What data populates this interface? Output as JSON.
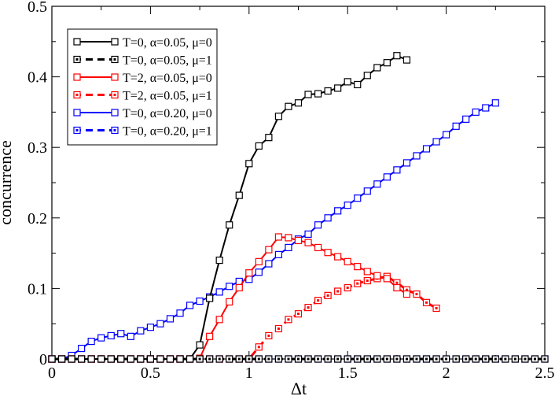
{
  "chart_data": {
    "type": "line",
    "title": "",
    "xlabel": "Δt",
    "ylabel": "concurrence",
    "xlim": [
      0,
      2.5
    ],
    "ylim": [
      0,
      0.5
    ],
    "xticks": [
      0,
      0.5,
      1,
      1.5,
      2,
      2.5
    ],
    "xtick_labels": [
      "0",
      "0.5",
      "1",
      "1.5",
      "2",
      "2.5"
    ],
    "yticks": [
      0,
      0.1,
      0.2,
      0.3,
      0.4,
      0.5
    ],
    "ytick_labels": [
      "0",
      "0.1",
      "0.2",
      "0.3",
      "0.4",
      "0.5"
    ],
    "grid": false,
    "legend_position": "top-left",
    "x": [
      0,
      0.05,
      0.1,
      0.15,
      0.2,
      0.25,
      0.3,
      0.35,
      0.4,
      0.45,
      0.5,
      0.55,
      0.6,
      0.65,
      0.7,
      0.75,
      0.8,
      0.85,
      0.9,
      0.95,
      1,
      1.05,
      1.1,
      1.15,
      1.2,
      1.25,
      1.3,
      1.35,
      1.4,
      1.45,
      1.5,
      1.55,
      1.6,
      1.65,
      1.7,
      1.75,
      1.8,
      1.85,
      1.9,
      1.95,
      2,
      2.05,
      2.1,
      2.15,
      2.2,
      2.25,
      2.3,
      2.35,
      2.4,
      2.45,
      2.5
    ],
    "series": [
      {
        "name": "T=0, α=0.05, μ=0",
        "label": "T=0, α=0.05, μ=0",
        "color": "#000000",
        "dashed": false,
        "values": [
          0,
          0,
          0,
          0,
          0,
          0,
          0,
          0,
          0,
          0,
          0,
          0,
          0,
          0,
          0,
          0.02,
          0.086,
          0.14,
          0.19,
          0.232,
          0.277,
          0.302,
          0.314,
          0.344,
          0.358,
          0.363,
          0.375,
          0.376,
          0.38,
          0.384,
          0.393,
          0.389,
          0.402,
          0.413,
          0.42,
          0.43,
          0.424,
          null,
          null,
          null,
          null,
          null,
          null,
          null,
          null,
          null,
          null,
          null,
          null,
          null,
          null
        ]
      },
      {
        "name": "T=0, α=0.05, μ=1",
        "label": "T=0, α=0.05, μ=1",
        "color": "#000000",
        "dashed": true,
        "values": [
          0,
          0,
          0,
          0,
          0,
          0,
          0,
          0,
          0,
          0,
          0,
          0,
          0,
          0,
          0,
          0,
          0,
          0,
          0,
          0,
          0,
          0,
          0,
          0,
          0,
          0,
          0,
          0,
          0,
          0,
          0,
          0,
          0,
          0,
          0,
          0,
          0,
          0,
          0,
          0,
          0,
          0,
          0,
          0,
          0,
          0,
          0,
          0,
          0,
          0,
          0
        ]
      },
      {
        "name": "T=2, α=0.05, μ=0",
        "label": "T=2, α=0.05, μ=0",
        "color": "#ff0000",
        "dashed": false,
        "values": [
          0,
          0,
          0,
          0,
          0,
          0,
          0,
          0,
          0,
          0,
          0,
          0,
          0,
          0,
          0,
          0.001,
          0.032,
          0.056,
          0.081,
          0.101,
          0.122,
          0.138,
          0.155,
          0.173,
          0.172,
          0.168,
          0.165,
          0.158,
          0.151,
          0.145,
          0.138,
          0.131,
          0.124,
          0.118,
          0.114,
          0.101,
          0.092,
          null,
          null,
          null,
          null,
          null,
          null,
          null,
          null,
          null,
          null,
          null,
          null,
          null,
          null
        ]
      },
      {
        "name": "T=2, α=0.05, μ=1",
        "label": "T=2, α=0.05, μ=1",
        "color": "#ff0000",
        "dashed": true,
        "values": [
          0,
          0,
          0,
          0,
          0,
          0,
          0,
          0,
          0,
          0,
          0,
          0,
          0,
          0,
          0,
          0,
          0,
          0,
          0,
          0,
          0,
          0.017,
          0.033,
          0.043,
          0.056,
          0.064,
          0.073,
          0.083,
          0.09,
          0.096,
          0.101,
          0.107,
          0.111,
          0.114,
          0.117,
          0.108,
          0.098,
          0.092,
          0.08,
          0.072,
          null,
          null,
          null,
          null,
          null,
          null,
          null,
          null,
          null,
          null,
          null
        ]
      },
      {
        "name": "T=0, α=0.20, μ=0",
        "label": "T=0, α=0.20, μ=0",
        "color": "#0000ff",
        "dashed": false,
        "values": [
          0,
          0,
          0.005,
          0.015,
          0.025,
          0.03,
          0.033,
          0.036,
          0.032,
          0.04,
          0.045,
          0.05,
          0.057,
          0.065,
          0.076,
          0.082,
          0.088,
          0.095,
          0.103,
          0.11,
          0.113,
          0.123,
          0.135,
          0.148,
          0.158,
          0.17,
          0.177,
          0.19,
          0.2,
          0.21,
          0.218,
          0.228,
          0.238,
          0.248,
          0.258,
          0.268,
          0.278,
          0.288,
          0.298,
          0.308,
          0.318,
          0.33,
          0.34,
          0.35,
          0.356,
          0.363,
          null,
          null,
          null,
          null,
          null
        ]
      },
      {
        "name": "T=0, α=0.20, μ=1",
        "label": "T=0, α=0.20, μ=1",
        "color": "#0000ff",
        "dashed": true,
        "values": [
          0,
          0,
          0,
          0,
          0,
          0,
          0,
          0,
          0,
          0,
          0,
          0,
          0,
          0,
          0,
          0,
          0,
          0,
          0,
          0,
          0,
          0,
          0,
          0,
          0,
          0,
          0,
          0,
          0,
          0,
          0,
          0,
          0,
          0,
          0,
          0,
          0,
          0,
          0,
          0,
          0,
          0,
          0,
          0,
          0,
          0,
          0,
          0,
          0,
          0,
          0
        ]
      }
    ]
  }
}
